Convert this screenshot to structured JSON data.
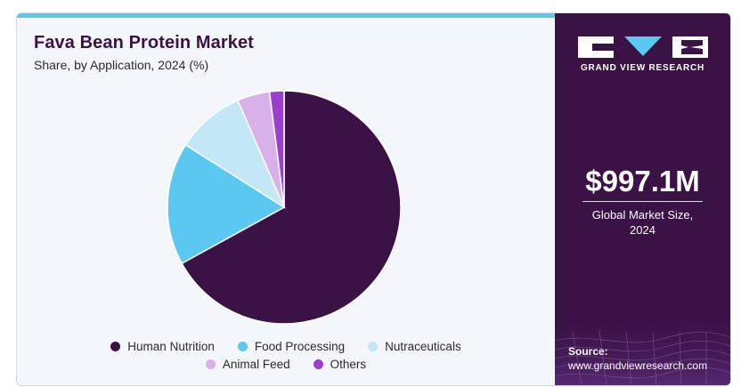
{
  "header": {
    "title": "Fava Bean Protein Market",
    "subtitle": "Share, by Application, 2024 (%)"
  },
  "chart_data": {
    "type": "pie",
    "title": "Fava Bean Protein Market",
    "subtitle": "Share, by Application, 2024 (%)",
    "categories": [
      "Human Nutrition",
      "Food Processing",
      "Nutraceuticals",
      "Animal Feed",
      "Others"
    ],
    "values": [
      67,
      17,
      9.5,
      4.5,
      2
    ],
    "colors": [
      "#3a1246",
      "#5bc8f2",
      "#c3e7f7",
      "#d8b0ea",
      "#9a3fd0"
    ],
    "legend": "bottom"
  },
  "legend": {
    "items": [
      {
        "label": "Human Nutrition",
        "color": "#3a1246"
      },
      {
        "label": "Food Processing",
        "color": "#5bc8f2"
      },
      {
        "label": "Nutraceuticals",
        "color": "#c3e7f7"
      },
      {
        "label": "Animal Feed",
        "color": "#d8b0ea"
      },
      {
        "label": "Others",
        "color": "#9a3fd0"
      }
    ]
  },
  "sidebar": {
    "brand": "GRAND VIEW RESEARCH",
    "market_value": "$997.1M",
    "market_label_line1": "Global Market Size,",
    "market_label_line2": "2024",
    "source_label": "Source:",
    "source_url": "www.grandviewresearch.com",
    "accent_color": "#5bc8f2",
    "background_color": "#3a1246"
  }
}
